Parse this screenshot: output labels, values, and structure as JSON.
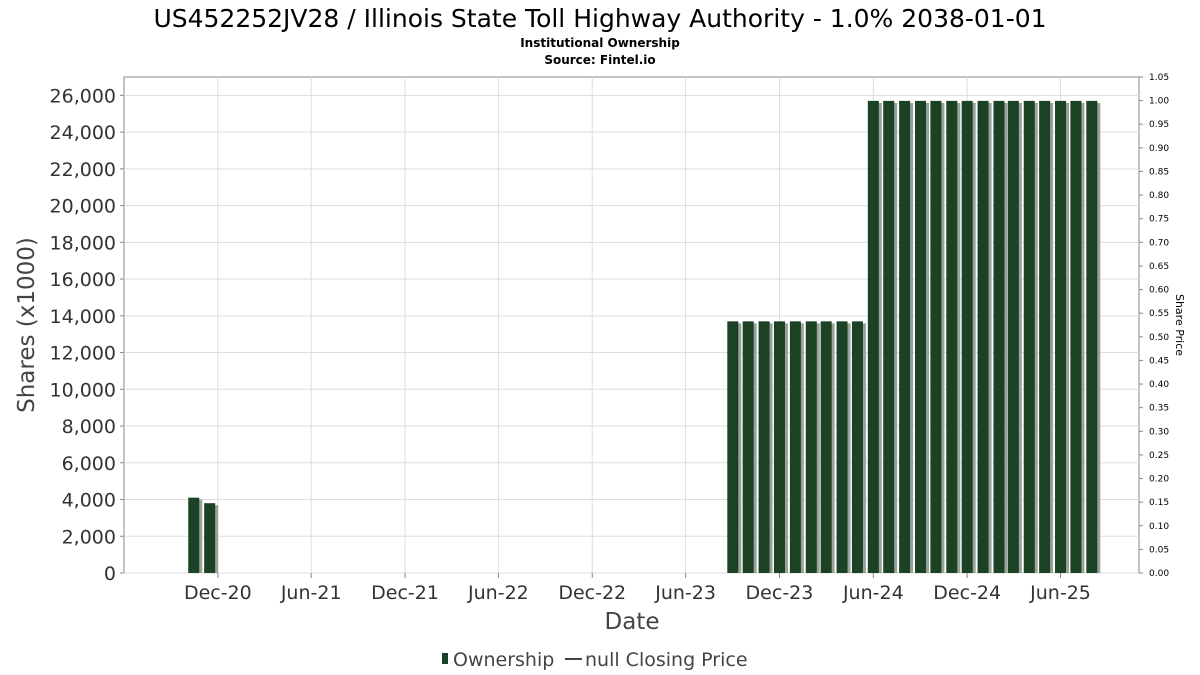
{
  "title": "US452252JV28 / Illinois State Toll Highway Authority - 1.0% 2038-01-01",
  "subtitle": "Institutional Ownership",
  "source": "Source: Fintel.io",
  "colors": {
    "bar": "#1b4224",
    "bar_shadow": "#9aa39a",
    "grid": "#dddddd",
    "axis": "#888888",
    "legend_line": "#444444"
  },
  "legend": {
    "ownership": "Ownership",
    "price": "null Closing Price",
    "ownership_icon": "bar-swatch-icon",
    "price_icon": "line-swatch-icon"
  },
  "chart_data": {
    "type": "bar",
    "xlabel": "Date",
    "ylabel": "Shares (x1000)",
    "y2label": "Share Price",
    "ylim": [
      0,
      27000
    ],
    "y2lim": [
      0,
      1.05
    ],
    "yticks": [
      "0",
      "2,000",
      "4,000",
      "6,000",
      "8,000",
      "10,000",
      "12,000",
      "14,000",
      "16,000",
      "18,000",
      "20,000",
      "22,000",
      "24,000",
      "26,000"
    ],
    "y2ticks": [
      "0.00",
      "0.05",
      "0.10",
      "0.15",
      "0.20",
      "0.25",
      "0.30",
      "0.35",
      "0.40",
      "0.45",
      "0.50",
      "0.55",
      "0.60",
      "0.65",
      "0.70",
      "0.75",
      "0.80",
      "0.85",
      "0.90",
      "0.95",
      "1.00",
      "1.05"
    ],
    "x_range": [
      "2020-06-01",
      "2025-11-01"
    ],
    "xticks": [
      {
        "label": "Dec-20",
        "date": "2020-12-01"
      },
      {
        "label": "Jun-21",
        "date": "2021-06-01"
      },
      {
        "label": "Dec-21",
        "date": "2021-12-01"
      },
      {
        "label": "Jun-22",
        "date": "2022-06-01"
      },
      {
        "label": "Dec-22",
        "date": "2022-12-01"
      },
      {
        "label": "Jun-23",
        "date": "2023-06-01"
      },
      {
        "label": "Dec-23",
        "date": "2023-12-01"
      },
      {
        "label": "Jun-24",
        "date": "2024-06-01"
      },
      {
        "label": "Dec-24",
        "date": "2024-12-01"
      },
      {
        "label": "Jun-25",
        "date": "2025-06-01"
      }
    ],
    "series": [
      {
        "name": "Ownership",
        "points": [
          {
            "date": "2020-10-15",
            "value": 4100
          },
          {
            "date": "2020-11-15",
            "value": 3800
          },
          {
            "date": "2023-09-01",
            "value": 13700
          },
          {
            "date": "2023-10-01",
            "value": 13700
          },
          {
            "date": "2023-11-01",
            "value": 13700
          },
          {
            "date": "2023-12-01",
            "value": 13700
          },
          {
            "date": "2024-01-01",
            "value": 13700
          },
          {
            "date": "2024-02-01",
            "value": 13700
          },
          {
            "date": "2024-03-01",
            "value": 13700
          },
          {
            "date": "2024-04-01",
            "value": 13700
          },
          {
            "date": "2024-05-01",
            "value": 13700
          },
          {
            "date": "2024-06-01",
            "value": 25700
          },
          {
            "date": "2024-07-01",
            "value": 25700
          },
          {
            "date": "2024-08-01",
            "value": 25700
          },
          {
            "date": "2024-09-01",
            "value": 25700
          },
          {
            "date": "2024-10-01",
            "value": 25700
          },
          {
            "date": "2024-11-01",
            "value": 25700
          },
          {
            "date": "2024-12-01",
            "value": 25700
          },
          {
            "date": "2025-01-01",
            "value": 25700
          },
          {
            "date": "2025-02-01",
            "value": 25700
          },
          {
            "date": "2025-03-01",
            "value": 25700
          },
          {
            "date": "2025-04-01",
            "value": 25700
          },
          {
            "date": "2025-05-01",
            "value": 25700
          },
          {
            "date": "2025-06-01",
            "value": 25700
          },
          {
            "date": "2025-07-01",
            "value": 25700
          },
          {
            "date": "2025-08-01",
            "value": 25700
          }
        ]
      }
    ],
    "grid": true,
    "legend_position": "bottom-center"
  }
}
